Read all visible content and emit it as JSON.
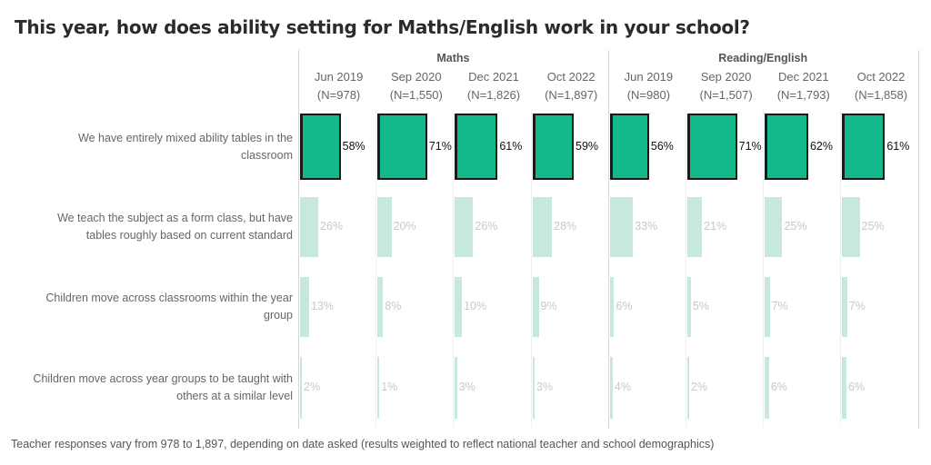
{
  "chart_data": {
    "type": "bar",
    "orientation": "horizontal",
    "title": "This year, how does ability setting for Maths/English work in your school?",
    "footnote": "Teacher responses vary from 978 to 1,897, depending on date asked (results weighted to reflect national teacher and school demographics)",
    "unit": "%",
    "xlim": [
      0,
      100
    ],
    "colors": {
      "highlight": "#13b98a",
      "muted": "#c7e8df",
      "highlight_border": "#1a1a1a"
    },
    "groups": [
      {
        "name": "Maths",
        "columns": [
          {
            "date": "Jun 2019",
            "n": "(N=978)"
          },
          {
            "date": "Sep 2020",
            "n": "(N=1,550)"
          },
          {
            "date": "Dec 2021",
            "n": "(N=1,826)"
          },
          {
            "date": "Oct 2022",
            "n": "(N=1,897)"
          }
        ]
      },
      {
        "name": "Reading/English",
        "columns": [
          {
            "date": "Jun 2019",
            "n": "(N=980)"
          },
          {
            "date": "Sep 2020",
            "n": "(N=1,507)"
          },
          {
            "date": "Dec 2021",
            "n": "(N=1,793)"
          },
          {
            "date": "Oct 2022",
            "n": "(N=1,858)"
          }
        ]
      }
    ],
    "categories": [
      "We have entirely mixed ability tables in the classroom",
      "We teach the subject as a form class, but have tables roughly based on current standard",
      "Children move across classrooms within the year group",
      "Children move across year groups to be taught with others at a similar level"
    ],
    "category_lines": [
      [
        "We have entirely mixed ability tables in the",
        "classroom"
      ],
      [
        "We teach the subject as a form class, but have",
        "tables roughly based on current standard"
      ],
      [
        "Children move across classrooms within the year",
        "group"
      ],
      [
        "Children move across year groups to be taught with",
        "others at a similar level"
      ]
    ],
    "highlighted_category": 0,
    "series": [
      {
        "name": "Maths Jun 2019",
        "values": [
          58,
          26,
          13,
          2
        ],
        "labels": [
          "58%",
          "26%",
          "13%",
          "2%"
        ]
      },
      {
        "name": "Maths Sep 2020",
        "values": [
          71,
          20,
          8,
          1
        ],
        "labels": [
          "71%",
          "20%",
          "8%",
          "1%"
        ]
      },
      {
        "name": "Maths Dec 2021",
        "values": [
          61,
          26,
          10,
          3
        ],
        "labels": [
          "61%",
          "26%",
          "10%",
          "3%"
        ]
      },
      {
        "name": "Maths Oct 2022",
        "values": [
          59,
          28,
          9,
          3
        ],
        "labels": [
          "59%",
          "28%",
          "9%",
          "3%"
        ]
      },
      {
        "name": "Reading/English Jun 2019",
        "values": [
          56,
          33,
          6,
          4
        ],
        "labels": [
          "56%",
          "33%",
          "6%",
          "4%"
        ]
      },
      {
        "name": "Reading/English Sep 2020",
        "values": [
          71,
          21,
          5,
          2
        ],
        "labels": [
          "71%",
          "21%",
          "5%",
          "2%"
        ]
      },
      {
        "name": "Reading/English Dec 2021",
        "values": [
          62,
          25,
          7,
          6
        ],
        "labels": [
          "62%",
          "25%",
          "7%",
          "6%"
        ]
      },
      {
        "name": "Reading/English Oct 2022",
        "values": [
          61,
          25,
          7,
          6
        ],
        "labels": [
          "61%",
          "25%",
          "7%",
          "6%"
        ]
      }
    ]
  }
}
